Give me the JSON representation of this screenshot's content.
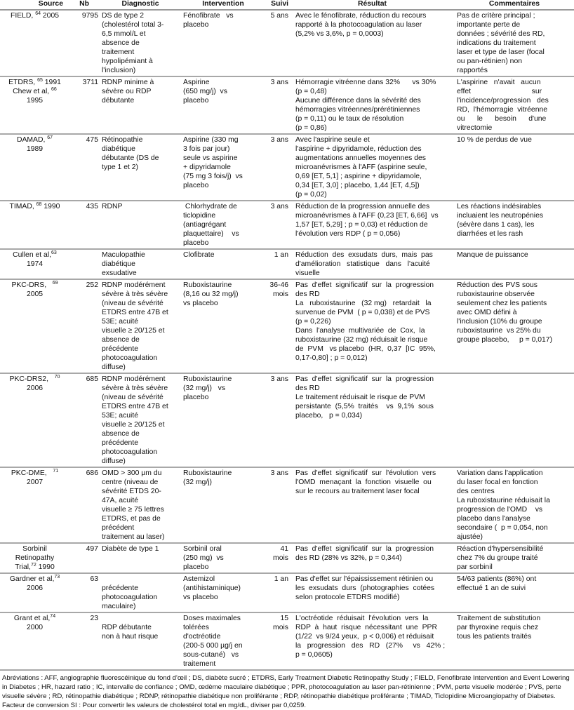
{
  "headers": [
    "Source",
    "Nb",
    "Diagnostic",
    "Intervention",
    "Suivi",
    "Résultat",
    "Commentaires"
  ],
  "rows": [
    {
      "source": [
        [
          {
            "t": "FIELD, "
          },
          {
            "sup": "64"
          },
          {
            "t": " 2005"
          }
        ]
      ],
      "nb": "9795",
      "diagnostic": "DS de type 2\n(cholestérol total 3-\n6,5 mmol/L et\nabsence de\ntraitement\nhypolipémiant à\nl'inclusion)",
      "intervention": "Fénofibrate   vs\nplacebo",
      "suivi": "5 ans",
      "resultat": "Avec le fénofibrate, réduction du recours\nrapporté à la photocoagulation au laser\n(5,2% vs 3,6%, p = 0,0003)",
      "commentaires": "Pas de critère principal ;\nimportante perte de\ndonnées ; sévérité des RD,\nindications du traitement\nlaser et type de laser (focal\nou pan-rétinien) non\nrapportés"
    },
    {
      "source": [
        [
          {
            "t": "ETDRS, "
          },
          {
            "sup": "65"
          },
          {
            "t": " 1991"
          }
        ],
        [
          {
            "t": "Chew et al, "
          },
          {
            "sup": "66"
          }
        ],
        [
          {
            "t": "1995"
          }
        ]
      ],
      "nb": "3711",
      "diagnostic": "RDNP minime à\nsévère ou RDP\ndébutante",
      "intervention": "Aspirine\n(650 mg/j)  vs\nplacebo",
      "suivi": "3 ans",
      "resultat": "Hémorragie vitréenne dans 32%      vs 30%\n(p = 0,48)\nAucune différence dans la sévérité des\nhémorragies vitréennes/prérétiniennes\n(p = 0,11) ou le taux de résolution\n(p = 0,86)",
      "commentaires": "L'aspirine   n'avait   aucun\neffet                              sur\nl'incidence/progression   des\nRD,  l'hémorragie  vitréenne\nou      le      besoin      d'une\nvitrectomie"
    },
    {
      "source": [
        [
          {
            "t": "DAMAD, "
          },
          {
            "sup": "67"
          }
        ],
        [
          {
            "t": "1989"
          }
        ]
      ],
      "nb": "475",
      "diagnostic": "Rétinopathie\ndiabétique\ndébutante (DS de\ntype 1 et 2)",
      "intervention": "Aspirine (330 mg\n3 fois par jour)\nseule vs aspirine\n+ dipyridamole\n(75 mg 3 fois/j)  vs\nplacebo",
      "suivi": "3 ans",
      "resultat": "Avec l'aspirine seule et\nl'aspirine + dipyridamole, réduction des\naugmentations annuelles moyennes des\nmicroanévrismes à l'AFF (aspirine seule,\n0,69 [ET, 5,1] ; aspirine + dipyridamole,\n0,34 [ET, 3,0] ; placebo, 1,44 [ET, 4,5])\n(p = 0,02)",
      "commentaires": "10 % de perdus de vue"
    },
    {
      "source": [
        [
          {
            "t": "TIMAD, "
          },
          {
            "sup": "68"
          },
          {
            "t": " 1990"
          }
        ]
      ],
      "nb": "435",
      "diagnostic": "RDNP",
      "intervention": " Chlorhydrate de\nticlopidine\n(antiagrégant\nplaquettaire)    vs\nplacebo",
      "suivi": "3 ans",
      "resultat": "Réduction de la progression annuelle des\nmicroanévrismes à l'AFF (0,23 [ET, 6,66]  vs\n1,57 [ET, 5,29] ; p = 0,03) et réduction de\nl'évolution vers RDP ( p = 0,056)",
      "commentaires": "Les réactions indésirables\nincluaient les neutropénies\n(sévère dans 1 cas), les\ndiarrhées et les rash"
    },
    {
      "source": [
        [
          {
            "t": "Cullen et al,"
          },
          {
            "sup": "63"
          }
        ],
        [
          {
            "t": "1974"
          }
        ]
      ],
      "nb": "",
      "diagnostic": "Maculopathie\ndiabétique\nexsudative",
      "intervention": "Clofibrate",
      "suivi": "1 an",
      "resultat": "Réduction  des  exsudats  durs,  mais  pas\nd'amélioration   statistique   dans   l'acuité\nvisuelle",
      "commentaires": "Manque de puissance"
    },
    {
      "source": [
        [
          {
            "t": "PKC-DRS,   "
          },
          {
            "sup": "69"
          }
        ],
        [
          {
            "t": "2005"
          }
        ]
      ],
      "nb": "252",
      "diagnostic": "RDNP modérément\nsévère à très sévère\n(niveau de sévérité\nETDRS entre 47B et\n53E; acuité\nvisuelle ≥ 20/125 et\nabsence de\nprécédente\nphotocoagulation\ndiffuse)",
      "intervention": "Ruboxistaurine\n(8,16 ou 32 mg/j)\nvs placebo",
      "suivi": "36-46\nmois",
      "resultat": "Pas  d'effet  significatif  sur  la  progression\ndes RD\nLa   ruboxistaurine   (32 mg)   retardait   la\nsurvenue de PVM  ( p = 0,038) et de PVS\n(p = 0,226)\nDans  l'analyse  multivariée  de  Cox,  la\nruboxistaurine (32 mg) réduisait le risque\nde  PVM   vs placebo  (HR,  0,37  [IC  95%,\n0,17-0,80] ; p = 0,012)",
      "commentaires": "Réduction des PVS sous\nruboxistaurine observée\nseulement chez les patients\navec OMD défini à\nl'inclusion (10% du groupe\nruboxistaurine  vs 25% du\ngroupe placebo,     p = 0,017)"
    },
    {
      "source": [
        [
          {
            "t": "PKC-DRS2,   "
          },
          {
            "sup": "70"
          }
        ],
        [
          {
            "t": "2006"
          }
        ]
      ],
      "nb": "685",
      "diagnostic": "RDNP modérément\nsévère à très sévère\n(niveau de sévérité\nETDRS entre 47B et\n53E; acuité\nvisuelle ≥ 20/125 et\nabsence de\nprécédente\nphotocoagulation\ndiffuse)",
      "intervention": "Ruboxistaurine\n(32 mg/j)   vs\nplacebo",
      "suivi": "3 ans",
      "resultat": "Pas  d'effet  significatif  sur  la  progression\ndes RD\nLe traitement réduisait le risque de PVM\npersistante  (5,5%  traités    vs  9,1%  sous\nplacebo,   p = 0,034)",
      "commentaires": ""
    },
    {
      "source": [
        [
          {
            "t": "PKC-DME,   "
          },
          {
            "sup": "71"
          }
        ],
        [
          {
            "t": "2007"
          }
        ]
      ],
      "nb": "686",
      "diagnostic": "OMD > 300  µm du\ncentre (niveau de\nsévérité ETDS 20-\n47A, acuité\nvisuelle ≥ 75 lettres\nETDRS, et pas de\nprécédent\ntraitement au laser)",
      "intervention": "Ruboxistaurine\n(32 mg/j)",
      "suivi": "3 ans",
      "resultat": "Pas  d'effet  significatif  sur  l'évolution  vers\nl'OMD  menaçant  la  fonction  visuelle  ou\nsur le recours au traitement laser focal",
      "commentaires": "Variation dans l'application\ndu laser focal en fonction\ndes centres\nLa ruboxistaurine réduisait la\nprogression de l'OMD    vs\nplacebo dans l'analyse\nsecondaire (  p = 0,054, non\najustée)"
    },
    {
      "source": [
        [
          {
            "t": "Sorbinil"
          }
        ],
        [
          {
            "t": "Retinopathy"
          }
        ],
        [
          {
            "t": "Trial,"
          },
          {
            "sup": "72"
          },
          {
            "t": " 1990"
          }
        ]
      ],
      "nb": "497",
      "diagnostic": "Diabète de type 1",
      "intervention": "Sorbinil oral\n(250 mg)  vs\nplacebo",
      "suivi": "41\nmois",
      "resultat": "Pas  d'effet  significatif  sur  la  progression\ndes RD (28% vs 32%, p = 0,344)",
      "commentaires": "Réaction d'hypersensibilité\nchez 7% du groupe traité\npar sorbinil"
    },
    {
      "source": [
        [
          {
            "t": "Gardner et al,"
          },
          {
            "sup": "73"
          }
        ],
        [
          {
            "t": "2006"
          }
        ]
      ],
      "nb": "63",
      "diagnostic": "\nprécédente\nphotocoagulation\nmaculaire)",
      "intervention": "Astemizol\n(antihistaminique)\nvs placebo",
      "suivi": "1 an",
      "resultat": "Pas d'effet sur l'épaississement rétinien ou\nles  exsudats  durs  (photographies  cotées\nselon protocole ETDRS modifié)",
      "commentaires": "54/63 patients (86%) ont\neffectué 1 an de suivi"
    },
    {
      "source": [
        [
          {
            "t": "Grant et al,"
          },
          {
            "sup": "74"
          }
        ],
        [
          {
            "t": "2000"
          }
        ]
      ],
      "nb": "23",
      "diagnostic": "\nRDP débutante\nnon à haut risque",
      "intervention": "Doses maximales\ntolérées\nd'octréotide\n(200-5 000 µg/j en\nsous-cutané)   vs\ntraitement",
      "suivi": "15\nmois",
      "resultat": "L'octréotide  réduisait  l'évolution  vers  la\nRDP  à  haut  risque  nécessitant  une  PPR\n(1/22  vs 9/24 yeux,  p < 0,006) et réduisait\nla   progression   des   RD   (27%     vs   42% ;\np = 0,0605)",
      "commentaires": "Traitement de substitution\npar thyroxine requis chez\ntous les patients traités"
    }
  ],
  "footer": {
    "abbreviations": "Abréviations : AFF, angiographie fluorescéinique du fond d'œil ; DS, diabète sucré ; ETDRS, Early Treatment Diabetic Retinopathy Study ; FIELD, Fenofibrate Intervention and Event Lowering in Diabetes ; HR, hazard ratio ; IC, intervalle de confiance ; OMD, œdème maculaire diabétique ; PPR, photocoagulation au laser pan-rétinienne ; PVM, perte visuelle modérée ; PVS, perte visuelle sévère ; RD, rétinopathie diabétique ; RDNP, rétinopathie diabétique non proliférante ; RDP, rétinopathie diabétique proliférante ; TIMAD, Ticlopidine Microangiopathy of Diabetes.",
    "conversion": "Facteur de conversion SI : Pour convertir les valeurs de cholestérol total en mg/dL, diviser par 0,0259."
  }
}
